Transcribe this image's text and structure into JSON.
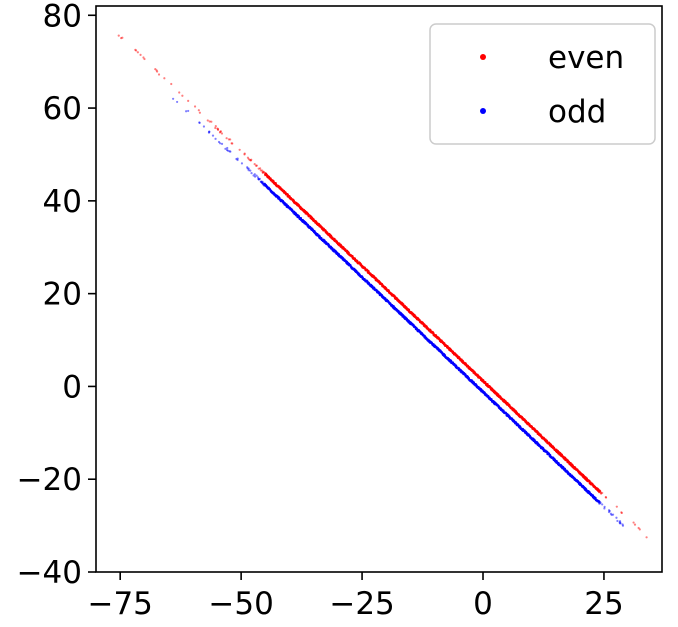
{
  "chart_data": {
    "type": "scatter",
    "title": "",
    "xlabel": "",
    "ylabel": "",
    "xlim": [
      -80,
      37
    ],
    "ylim": [
      -40,
      82
    ],
    "x_ticks": [
      -75,
      -50,
      -25,
      0,
      25
    ],
    "x_tick_labels": [
      "−75",
      "−50",
      "−25",
      "0",
      "25"
    ],
    "y_ticks": [
      -40,
      -20,
      0,
      20,
      40,
      60,
      80
    ],
    "y_tick_labels": [
      "−40",
      "−20",
      "0",
      "20",
      "40",
      "60",
      "80"
    ],
    "grid": false,
    "legend_position": "top-right",
    "series": [
      {
        "name": "even",
        "color": "#ff0000",
        "line": {
          "slope": -0.99,
          "intercept": 1.2,
          "x_dense": [
            -45,
            24
          ],
          "x_sparse": [
            -76,
            34
          ]
        }
      },
      {
        "name": "odd",
        "color": "#0000ff",
        "line": {
          "slope": -0.99,
          "intercept": -1.2,
          "x_dense": [
            -45,
            24
          ],
          "x_sparse": [
            -65,
            29
          ]
        }
      }
    ]
  }
}
